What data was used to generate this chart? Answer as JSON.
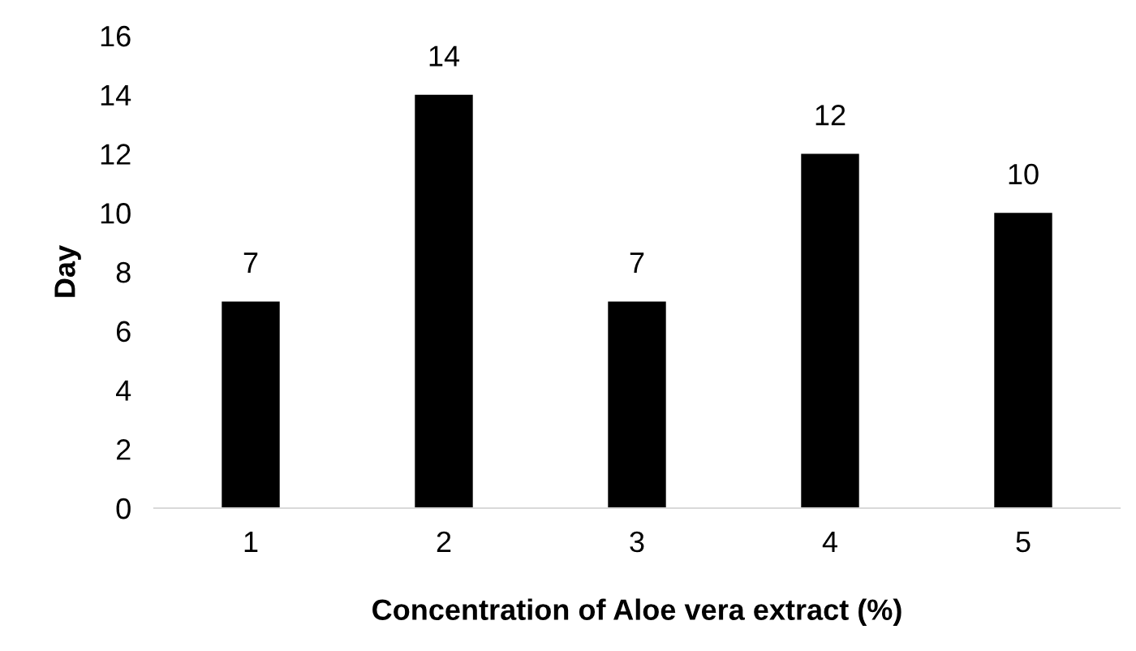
{
  "chart_data": {
    "type": "bar",
    "xlabel": "Concentration of Aloe vera extract (%)",
    "ylabel": "Day",
    "categories": [
      "1",
      "2",
      "3",
      "4",
      "5"
    ],
    "values": [
      7,
      14,
      7,
      12,
      10
    ],
    "color": "#000000",
    "ylim": [
      0,
      16
    ],
    "yticks": [
      0,
      2,
      4,
      6,
      8,
      10,
      12,
      14,
      16
    ],
    "grid": false,
    "data_labels": true
  }
}
